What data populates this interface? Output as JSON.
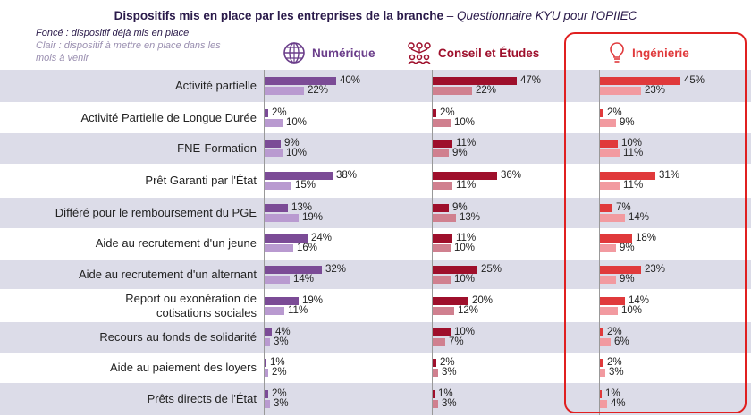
{
  "title": {
    "bold": "Dispositifs mis en place par les entreprises de la branche",
    "dash": " – ",
    "italic": "Questionnaire KYU pour l'OPIIEC"
  },
  "legend": {
    "dark": "Foncé : dispositif déjà mis en place",
    "light": "Clair : dispositif à mettre en place dans les mois à venir"
  },
  "groups": [
    {
      "name": "Numérique",
      "icon": "globe-icon",
      "dark_color": "#7b4b96",
      "light_color": "#b99ad0",
      "text_color": "#6a3d8a"
    },
    {
      "name": "Conseil et Études",
      "icon": "people-network-icon",
      "dark_color": "#9e0f2b",
      "light_color": "#d0808f",
      "text_color": "#9e0f2b"
    },
    {
      "name": "Ingénierie",
      "icon": "lightbulb-icon",
      "dark_color": "#e0393b",
      "light_color": "#f29aa0",
      "text_color": "#e0393b"
    }
  ],
  "chart_data": {
    "type": "bar",
    "orientation": "horizontal",
    "categories": [
      "Activité partielle",
      "Activité Partielle de Longue Durée",
      "FNE-Formation",
      "Prêt Garanti par l'État",
      "Différé pour le remboursement du PGE",
      "Aide au recrutement d'un jeune",
      "Aide au recrutement d'un alternant",
      "Report ou exonération de cotisations sociales",
      "Recours au fonds de solidarité",
      "Aide au paiement des loyers",
      "Prêts directs de l'État"
    ],
    "series": [
      {
        "name": "Numérique",
        "dark": [
          40,
          2,
          9,
          38,
          13,
          24,
          32,
          19,
          4,
          1,
          2
        ],
        "light": [
          22,
          10,
          10,
          15,
          19,
          16,
          14,
          11,
          3,
          2,
          3
        ]
      },
      {
        "name": "Conseil et Études",
        "dark": [
          47,
          2,
          11,
          36,
          9,
          11,
          25,
          20,
          10,
          2,
          1
        ],
        "light": [
          22,
          10,
          9,
          11,
          13,
          10,
          10,
          12,
          7,
          3,
          3
        ]
      },
      {
        "name": "Ingénierie",
        "dark": [
          45,
          2,
          10,
          31,
          7,
          18,
          23,
          14,
          2,
          2,
          1
        ],
        "light": [
          23,
          9,
          11,
          11,
          14,
          9,
          9,
          10,
          6,
          3,
          4
        ]
      }
    ],
    "unit": "%",
    "xlim": [
      0,
      50
    ]
  }
}
